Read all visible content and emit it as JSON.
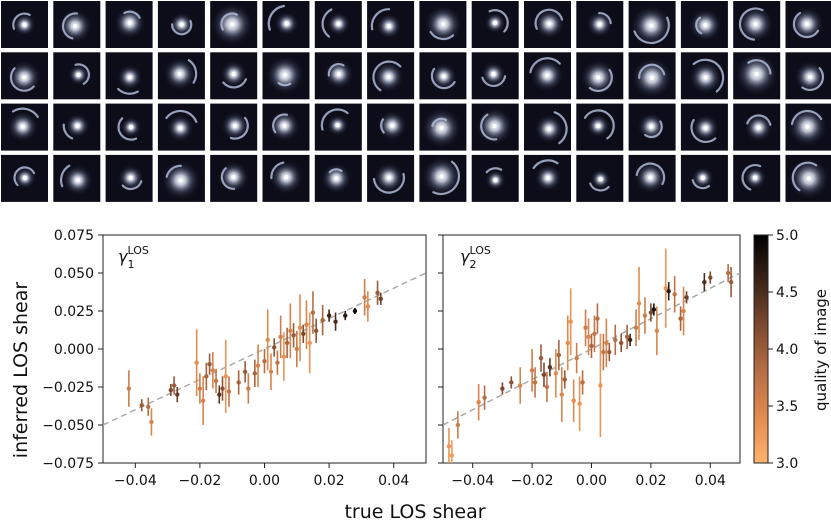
{
  "figure": {
    "thumbnail_grid": {
      "rows": 4,
      "cols": 16,
      "description_icon": "lens-image-icon"
    },
    "colors": {
      "thumb_bg": "#0d0d1a",
      "lens_glow": "#dfe6f5",
      "arc": "#b8c4e0",
      "line": "#aaaaaa"
    }
  },
  "chart_data": [
    {
      "type": "scatter",
      "panel": "left",
      "label_main": "γ",
      "label_sub": "1",
      "label_sup": "LOS",
      "xlim": [
        -0.05,
        0.05
      ],
      "ylim": [
        -0.075,
        0.075
      ],
      "xticks": [
        "−0.04",
        "−0.02",
        "0.00",
        "0.02",
        "0.04"
      ],
      "xtick_values": [
        -0.04,
        -0.02,
        0.0,
        0.02,
        0.04
      ],
      "yticks": [
        "−0.075",
        "−0.050",
        "−0.025",
        "0.000",
        "0.025",
        "0.050",
        "0.075"
      ],
      "ytick_values": [
        -0.075,
        -0.05,
        -0.025,
        0.0,
        0.025,
        0.05,
        0.075
      ],
      "reference_line": "y = x",
      "points": [
        {
          "x": -0.042,
          "y": -0.026,
          "err": 0.012,
          "q": 3.6
        },
        {
          "x": -0.038,
          "y": -0.037,
          "err": 0.004,
          "q": 4.0
        },
        {
          "x": -0.036,
          "y": -0.038,
          "err": 0.006,
          "q": 3.8
        },
        {
          "x": -0.035,
          "y": -0.048,
          "err": 0.009,
          "q": 3.5
        },
        {
          "x": -0.029,
          "y": -0.027,
          "err": 0.004,
          "q": 4.2
        },
        {
          "x": -0.028,
          "y": -0.024,
          "err": 0.006,
          "q": 4.0
        },
        {
          "x": -0.027,
          "y": -0.03,
          "err": 0.005,
          "q": 4.3
        },
        {
          "x": -0.021,
          "y": -0.009,
          "err": 0.022,
          "q": 3.4
        },
        {
          "x": -0.02,
          "y": -0.026,
          "err": 0.01,
          "q": 3.6
        },
        {
          "x": -0.019,
          "y": -0.034,
          "err": 0.016,
          "q": 3.5
        },
        {
          "x": -0.018,
          "y": -0.018,
          "err": 0.009,
          "q": 3.9
        },
        {
          "x": -0.017,
          "y": -0.01,
          "err": 0.007,
          "q": 4.0
        },
        {
          "x": -0.016,
          "y": -0.014,
          "err": 0.012,
          "q": 3.5
        },
        {
          "x": -0.015,
          "y": -0.021,
          "err": 0.008,
          "q": 3.7
        },
        {
          "x": -0.014,
          "y": -0.03,
          "err": 0.006,
          "q": 4.4
        },
        {
          "x": -0.013,
          "y": -0.026,
          "err": 0.008,
          "q": 4.1
        },
        {
          "x": -0.012,
          "y": -0.018,
          "err": 0.024,
          "q": 3.3
        },
        {
          "x": -0.011,
          "y": -0.028,
          "err": 0.01,
          "q": 3.7
        },
        {
          "x": -0.008,
          "y": -0.022,
          "err": 0.008,
          "q": 3.9
        },
        {
          "x": -0.006,
          "y": -0.015,
          "err": 0.007,
          "q": 4.0
        },
        {
          "x": -0.005,
          "y": -0.026,
          "err": 0.01,
          "q": 3.6
        },
        {
          "x": -0.003,
          "y": -0.016,
          "err": 0.009,
          "q": 3.9
        },
        {
          "x": -0.002,
          "y": -0.011,
          "err": 0.014,
          "q": 3.5
        },
        {
          "x": 0.0,
          "y": -0.008,
          "err": 0.008,
          "q": 3.8
        },
        {
          "x": 0.001,
          "y": 0.006,
          "err": 0.02,
          "q": 3.4
        },
        {
          "x": 0.002,
          "y": -0.015,
          "err": 0.012,
          "q": 3.5
        },
        {
          "x": 0.003,
          "y": 0.001,
          "err": 0.006,
          "q": 4.1
        },
        {
          "x": 0.004,
          "y": -0.009,
          "err": 0.008,
          "q": 3.7
        },
        {
          "x": 0.005,
          "y": 0.008,
          "err": 0.014,
          "q": 3.6
        },
        {
          "x": 0.006,
          "y": -0.005,
          "err": 0.016,
          "q": 3.3
        },
        {
          "x": 0.007,
          "y": 0.004,
          "err": 0.01,
          "q": 3.9
        },
        {
          "x": 0.008,
          "y": 0.012,
          "err": 0.018,
          "q": 3.5
        },
        {
          "x": 0.009,
          "y": 0.009,
          "err": 0.008,
          "q": 4.0
        },
        {
          "x": 0.01,
          "y": 0.0,
          "err": 0.012,
          "q": 3.6
        },
        {
          "x": 0.011,
          "y": 0.014,
          "err": 0.022,
          "q": 3.4
        },
        {
          "x": 0.012,
          "y": 0.01,
          "err": 0.006,
          "q": 4.2
        },
        {
          "x": 0.013,
          "y": 0.016,
          "err": 0.016,
          "q": 3.5
        },
        {
          "x": 0.014,
          "y": 0.004,
          "err": 0.02,
          "q": 3.3
        },
        {
          "x": 0.015,
          "y": 0.024,
          "err": 0.014,
          "q": 3.8
        },
        {
          "x": 0.016,
          "y": 0.012,
          "err": 0.008,
          "q": 4.1
        },
        {
          "x": 0.018,
          "y": 0.019,
          "err": 0.01,
          "q": 3.9
        },
        {
          "x": 0.02,
          "y": 0.022,
          "err": 0.004,
          "q": 4.6
        },
        {
          "x": 0.022,
          "y": 0.018,
          "err": 0.006,
          "q": 4.5
        },
        {
          "x": 0.025,
          "y": 0.022,
          "err": 0.003,
          "q": 4.7
        },
        {
          "x": 0.028,
          "y": 0.025,
          "err": 0.002,
          "q": 5.0
        },
        {
          "x": 0.031,
          "y": 0.034,
          "err": 0.012,
          "q": 3.6
        },
        {
          "x": 0.032,
          "y": 0.028,
          "err": 0.01,
          "q": 3.4
        },
        {
          "x": 0.035,
          "y": 0.037,
          "err": 0.008,
          "q": 4.0
        },
        {
          "x": 0.036,
          "y": 0.033,
          "err": 0.004,
          "q": 4.3
        }
      ]
    },
    {
      "type": "scatter",
      "panel": "right",
      "label_main": "γ",
      "label_sub": "2",
      "label_sup": "LOS",
      "xlim": [
        -0.05,
        0.05
      ],
      "ylim": [
        -0.075,
        0.075
      ],
      "xticks": [
        "−0.04",
        "−0.02",
        "0.00",
        "0.02",
        "0.04"
      ],
      "xtick_values": [
        -0.04,
        -0.02,
        0.0,
        0.02,
        0.04
      ],
      "reference_line": "y = x",
      "points": [
        {
          "x": -0.048,
          "y": -0.064,
          "err": 0.012,
          "q": 3.3
        },
        {
          "x": -0.047,
          "y": -0.07,
          "err": 0.01,
          "q": 3.2
        },
        {
          "x": -0.045,
          "y": -0.05,
          "err": 0.009,
          "q": 3.6
        },
        {
          "x": -0.038,
          "y": -0.035,
          "err": 0.012,
          "q": 3.5
        },
        {
          "x": -0.036,
          "y": -0.032,
          "err": 0.008,
          "q": 3.8
        },
        {
          "x": -0.03,
          "y": -0.026,
          "err": 0.004,
          "q": 4.2
        },
        {
          "x": -0.027,
          "y": -0.022,
          "err": 0.004,
          "q": 4.1
        },
        {
          "x": -0.024,
          "y": -0.024,
          "err": 0.012,
          "q": 3.5
        },
        {
          "x": -0.02,
          "y": -0.014,
          "err": 0.014,
          "q": 3.6
        },
        {
          "x": -0.019,
          "y": -0.022,
          "err": 0.01,
          "q": 3.7
        },
        {
          "x": -0.017,
          "y": -0.006,
          "err": 0.009,
          "q": 4.0
        },
        {
          "x": -0.016,
          "y": -0.017,
          "err": 0.008,
          "q": 4.2
        },
        {
          "x": -0.015,
          "y": -0.025,
          "err": 0.01,
          "q": 3.7
        },
        {
          "x": -0.014,
          "y": -0.012,
          "err": 0.006,
          "q": 4.4
        },
        {
          "x": -0.012,
          "y": -0.016,
          "err": 0.016,
          "q": 3.4
        },
        {
          "x": -0.011,
          "y": -0.004,
          "err": 0.01,
          "q": 3.9
        },
        {
          "x": -0.01,
          "y": -0.03,
          "err": 0.018,
          "q": 3.5
        },
        {
          "x": -0.009,
          "y": -0.02,
          "err": 0.006,
          "q": 4.0
        },
        {
          "x": -0.008,
          "y": 0.004,
          "err": 0.018,
          "q": 3.4
        },
        {
          "x": -0.007,
          "y": 0.018,
          "err": 0.022,
          "q": 3.3
        },
        {
          "x": -0.006,
          "y": -0.034,
          "err": 0.014,
          "q": 3.4
        },
        {
          "x": -0.005,
          "y": -0.006,
          "err": 0.01,
          "q": 3.6
        },
        {
          "x": -0.004,
          "y": -0.036,
          "err": 0.018,
          "q": 3.3
        },
        {
          "x": -0.003,
          "y": -0.022,
          "err": 0.008,
          "q": 3.8
        },
        {
          "x": -0.002,
          "y": 0.014,
          "err": 0.012,
          "q": 3.6
        },
        {
          "x": -0.001,
          "y": 0.008,
          "err": 0.012,
          "q": 3.5
        },
        {
          "x": 0.0,
          "y": 0.002,
          "err": 0.008,
          "q": 3.9
        },
        {
          "x": 0.001,
          "y": 0.01,
          "err": 0.012,
          "q": 3.7
        },
        {
          "x": 0.002,
          "y": 0.02,
          "err": 0.01,
          "q": 3.8
        },
        {
          "x": 0.003,
          "y": -0.024,
          "err": 0.034,
          "q": 3.3
        },
        {
          "x": 0.004,
          "y": -0.002,
          "err": 0.012,
          "q": 3.7
        },
        {
          "x": 0.005,
          "y": 0.004,
          "err": 0.016,
          "q": 3.5
        },
        {
          "x": 0.006,
          "y": -0.002,
          "err": 0.006,
          "q": 4.0
        },
        {
          "x": 0.008,
          "y": 0.006,
          "err": 0.01,
          "q": 3.8
        },
        {
          "x": 0.01,
          "y": 0.004,
          "err": 0.006,
          "q": 4.1
        },
        {
          "x": 0.012,
          "y": 0.008,
          "err": 0.008,
          "q": 3.9
        },
        {
          "x": 0.013,
          "y": 0.006,
          "err": 0.004,
          "q": 4.6
        },
        {
          "x": 0.015,
          "y": 0.014,
          "err": 0.012,
          "q": 3.6
        },
        {
          "x": 0.016,
          "y": 0.03,
          "err": 0.024,
          "q": 3.4
        },
        {
          "x": 0.018,
          "y": 0.022,
          "err": 0.012,
          "q": 3.6
        },
        {
          "x": 0.02,
          "y": 0.024,
          "err": 0.006,
          "q": 4.2
        },
        {
          "x": 0.021,
          "y": 0.026,
          "err": 0.004,
          "q": 4.8
        },
        {
          "x": 0.022,
          "y": 0.012,
          "err": 0.016,
          "q": 3.5
        },
        {
          "x": 0.025,
          "y": 0.04,
          "err": 0.026,
          "q": 3.3
        },
        {
          "x": 0.026,
          "y": 0.038,
          "err": 0.006,
          "q": 4.7
        },
        {
          "x": 0.028,
          "y": 0.036,
          "err": 0.012,
          "q": 3.7
        },
        {
          "x": 0.03,
          "y": 0.02,
          "err": 0.008,
          "q": 3.9
        },
        {
          "x": 0.031,
          "y": 0.025,
          "err": 0.016,
          "q": 3.5
        },
        {
          "x": 0.032,
          "y": 0.034,
          "err": 0.004,
          "q": 4.3
        },
        {
          "x": 0.038,
          "y": 0.044,
          "err": 0.006,
          "q": 4.5
        },
        {
          "x": 0.04,
          "y": 0.047,
          "err": 0.004,
          "q": 4.2
        },
        {
          "x": 0.046,
          "y": 0.05,
          "err": 0.006,
          "q": 3.8
        },
        {
          "x": 0.047,
          "y": 0.044,
          "err": 0.01,
          "q": 4.0
        }
      ]
    }
  ],
  "colorbar": {
    "label": "quality of image",
    "min": 3.0,
    "max": 5.0,
    "ticks": [
      "3.0",
      "3.5",
      "4.0",
      "4.5",
      "5.0"
    ],
    "tick_values": [
      3.0,
      3.5,
      4.0,
      4.5,
      5.0
    ],
    "colors": [
      "#ffb36e",
      "#e38b4f",
      "#b76e45",
      "#7d4a2f",
      "#3a2418",
      "#000000"
    ]
  },
  "axes": {
    "ylabel": "inferred LOS shear",
    "xlabel": "true LOS shear"
  }
}
